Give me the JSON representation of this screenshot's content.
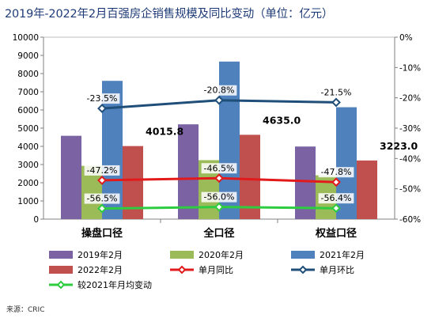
{
  "title": "2019年-2022年2月百强房企销售规模及同比变动（单位：亿元）",
  "source": "来源：CRIC",
  "chart_data": {
    "type": "bar",
    "categories": [
      "操盘口径",
      "全口径",
      "权益口径"
    ],
    "left_axis": {
      "ylim": [
        0,
        10000
      ],
      "ticks": [
        "0",
        "1000",
        "2000",
        "3000",
        "4000",
        "5000",
        "6000",
        "7000",
        "8000",
        "9000",
        "10000"
      ]
    },
    "right_axis": {
      "ylim": [
        -60,
        0
      ],
      "ticks": [
        "0%",
        "-10%",
        "-20%",
        "-30%",
        "-40%",
        "-50%",
        "-60%"
      ]
    },
    "bar_series": [
      {
        "name": "2019年2月",
        "color": "#7b62a3",
        "values": [
          4580,
          5210,
          3990
        ]
      },
      {
        "name": "2020年2月",
        "color": "#9bbb59",
        "values": [
          2930,
          3240,
          2410
        ]
      },
      {
        "name": "2021年2月",
        "color": "#4f81bd",
        "values": [
          7600,
          8660,
          6150
        ]
      },
      {
        "name": "2022年2月",
        "color": "#c0504d",
        "values": [
          4015.8,
          4635.0,
          3223.0
        ],
        "labels": [
          "4015.8",
          "4635.0",
          "3223.0"
        ]
      }
    ],
    "line_series": [
      {
        "name": "单月同比",
        "color": "#e31a1c",
        "values": [
          -47.2,
          -46.5,
          -47.8
        ],
        "labels": [
          "-47.2%",
          "-46.5%",
          "-47.8%"
        ]
      },
      {
        "name": "单月环比",
        "color": "#1f4e79",
        "values": [
          -23.5,
          -20.8,
          -21.5
        ],
        "labels": [
          "-23.5%",
          "-20.8%",
          "-21.5%"
        ]
      },
      {
        "name": "较2021年月均变动",
        "color": "#2ecc40",
        "values": [
          -56.5,
          -56.0,
          -56.4
        ],
        "labels": [
          "-56.5%",
          "-56.0%",
          "-56.4%"
        ]
      }
    ]
  }
}
